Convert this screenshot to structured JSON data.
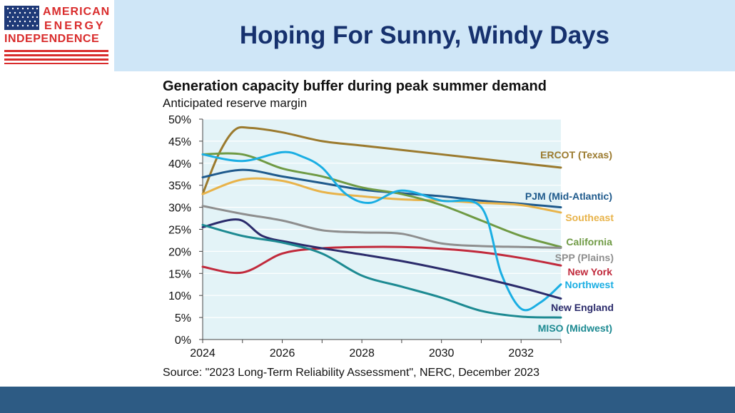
{
  "logo": {
    "line1": "AMERICAN",
    "line2": "ENERGY",
    "line3": "INDEPENDENCE",
    "flag_blue": "#1f3a78",
    "flag_red": "#d92c2c"
  },
  "slide": {
    "title": "Hoping For Sunny, Windy Days",
    "header_color": "#cfe6f7",
    "footer_color": "#2d5b84"
  },
  "chart_data": {
    "type": "line",
    "title": "Generation capacity buffer during peak summer demand",
    "subtitle": "Anticipated reserve margin",
    "source": "Source: \"2023 Long-Term Reliability Assessment\", NERC, December 2023",
    "xlim": [
      2024,
      2033
    ],
    "ylim": [
      0,
      50
    ],
    "x_ticks": [
      2024,
      2026,
      2028,
      2030,
      2032
    ],
    "y_ticks": [
      0,
      5,
      10,
      15,
      20,
      25,
      30,
      35,
      40,
      45,
      50
    ],
    "y_tick_labels": [
      "0%",
      "5%",
      "10%",
      "15%",
      "20%",
      "25%",
      "30%",
      "35%",
      "40%",
      "45%",
      "50%"
    ],
    "plot_background": "#e3f3f7",
    "series": [
      {
        "name": "ERCOT (Texas)",
        "color": "#9b7a2e",
        "x": [
          2024,
          2024.4,
          2024.8,
          2025.2,
          2026,
          2027,
          2028,
          2029,
          2030,
          2031,
          2032,
          2033
        ],
        "y": [
          33,
          42,
          47.5,
          48,
          47,
          45,
          44,
          43,
          42,
          41,
          40,
          39
        ]
      },
      {
        "name": "PJM (Mid-Atlantic)",
        "color": "#1f5a8c",
        "x": [
          2024,
          2025,
          2026,
          2027,
          2028,
          2029,
          2030,
          2031,
          2032,
          2033
        ],
        "y": [
          36.8,
          38.5,
          37,
          35.5,
          34,
          33.2,
          32.5,
          31.5,
          30.8,
          30
        ]
      },
      {
        "name": "Southeast",
        "color": "#e8b34a",
        "x": [
          2024,
          2025,
          2026,
          2027,
          2028,
          2029,
          2030,
          2031,
          2032,
          2033
        ],
        "y": [
          33,
          36.3,
          36,
          33.5,
          32.5,
          31.8,
          31.5,
          31,
          30.5,
          28.8
        ]
      },
      {
        "name": "California",
        "color": "#6f9a44",
        "x": [
          2024,
          2025,
          2026,
          2027,
          2028,
          2029,
          2030,
          2031,
          2032,
          2033
        ],
        "y": [
          42,
          42,
          38.8,
          37,
          34.5,
          33,
          30.5,
          27,
          23.5,
          21
        ]
      },
      {
        "name": "SPP (Plains)",
        "color": "#8e8e8e",
        "x": [
          2024,
          2025,
          2026,
          2027,
          2028,
          2029,
          2030,
          2031,
          2032,
          2033
        ],
        "y": [
          30.3,
          28.5,
          27,
          24.8,
          24.3,
          24,
          21.8,
          21.2,
          21,
          20.8
        ]
      },
      {
        "name": "New York",
        "color": "#c12a3c",
        "x": [
          2024,
          2025,
          2026,
          2027,
          2028,
          2029,
          2030,
          2031,
          2032,
          2033
        ],
        "y": [
          16.5,
          15.2,
          19.5,
          20.7,
          21,
          21,
          20.6,
          19.8,
          18.5,
          16.8
        ]
      },
      {
        "name": "Northwest",
        "color": "#1aaee3",
        "x": [
          2024,
          2025,
          2026,
          2026.5,
          2027,
          2027.6,
          2028.2,
          2029,
          2030,
          2031,
          2031.5,
          2032,
          2032.5,
          2033
        ],
        "y": [
          42,
          40.5,
          42.5,
          41.5,
          39,
          33,
          31,
          33.8,
          31.5,
          30,
          15,
          7,
          8.5,
          12.5
        ]
      },
      {
        "name": "New England",
        "color": "#2b2b6b",
        "x": [
          2024,
          2024.9,
          2025.5,
          2026.2,
          2027,
          2028,
          2029,
          2030,
          2031,
          2032,
          2033
        ],
        "y": [
          25.5,
          27.2,
          23.5,
          22,
          20.7,
          19.3,
          17.8,
          16,
          14,
          11.8,
          9.3
        ]
      },
      {
        "name": "MISO (Midwest)",
        "color": "#1d8a92",
        "x": [
          2024,
          2025,
          2026,
          2027,
          2028,
          2029,
          2030,
          2031,
          2032,
          2033
        ],
        "y": [
          26,
          23.5,
          22,
          19.5,
          14.5,
          12,
          9.5,
          6.5,
          5.2,
          5
        ]
      }
    ]
  }
}
